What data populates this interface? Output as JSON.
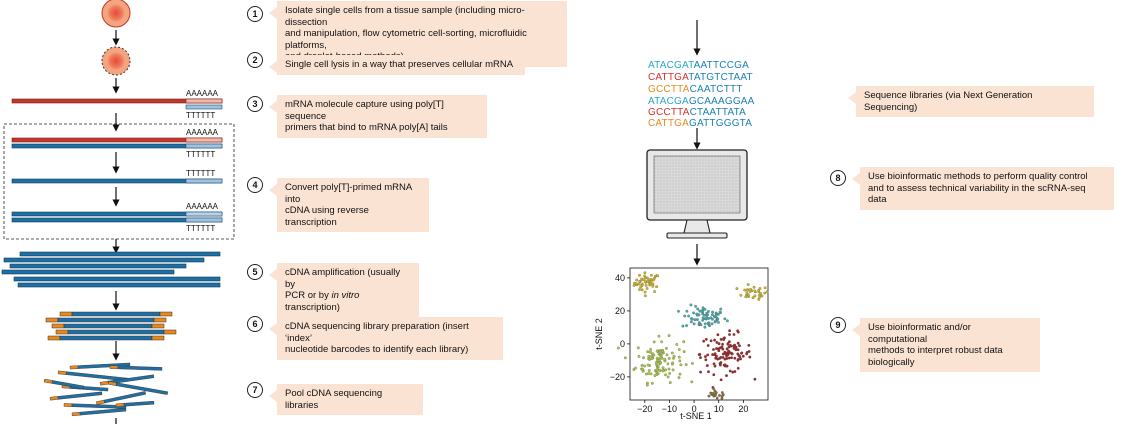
{
  "steps": [
    {
      "num": "1",
      "lines": [
        "Isolate single cells from a tissue sample (including micro-dissection",
        "and manipulation, flow cytometric cell-sorting, microfluidic platforms,",
        "and droplet-based methods)"
      ]
    },
    {
      "num": "2",
      "lines": [
        "Single cell lysis in a way that preserves cellular mRNA"
      ]
    },
    {
      "num": "3",
      "lines": [
        "mRNA molecule capture using poly[T] sequence",
        "primers that bind to mRNA poly[A] tails"
      ]
    },
    {
      "num": "4",
      "lines": [
        "Convert poly[T]-primed mRNA into",
        "cDNA using reverse transcription"
      ]
    },
    {
      "num": "5",
      "lines": [
        "cDNA amplification (usually by",
        "PCR or by in vitro transcription)"
      ]
    },
    {
      "num": "6",
      "lines": [
        "cDNA sequencing library preparation (insert ‘index’",
        "nucleotide barcodes to identify each library)"
      ]
    },
    {
      "num": "7",
      "lines": [
        "Pool cDNA sequencing libraries"
      ]
    },
    {
      "num": "",
      "lines": [
        "Sequence libraries (via Next Generation Sequencing)"
      ]
    },
    {
      "num": "8",
      "lines": [
        "Use bioinformatic methods to perform quality control",
        "and to assess technical variability in the scRNA-seq data"
      ]
    },
    {
      "num": "9",
      "lines": [
        "Use bioinformatic and/or computational",
        "methods to interpret robust data biologically"
      ]
    }
  ],
  "poly_a_label": "AAAAAA",
  "poly_t_label": "TTTTTT",
  "sequences": [
    {
      "prefix": "ATACGAT",
      "rest": "AATTCCGA",
      "color": "#2aa6c9"
    },
    {
      "prefix": "CATTGA",
      "rest": "TATGTCTAAT",
      "color": "#d9302c"
    },
    {
      "prefix": "GCCTTA",
      "rest": "CAATCTTT",
      "color": "#e8891f"
    },
    {
      "prefix": "ATACGA",
      "rest": "GCAAAGGAA",
      "color": "#2aa6c9"
    },
    {
      "prefix": "GCCTTA",
      "rest": "CTAATTATA",
      "color": "#d9302c"
    },
    {
      "prefix": "CATTGA",
      "rest": "GATTGGGTA",
      "color": "#e8891f"
    }
  ],
  "sequence_rest_color": "#1b7fb2",
  "colors": {
    "mrna": "#c0392b",
    "cdna": "#1f6fa3",
    "index": "#e8891f",
    "label_bg": "#fbe3d4"
  },
  "tsne": {
    "xlabel": "t-SNE 1",
    "ylabel": "t-SNE 2",
    "xticks": [
      -20,
      -10,
      0,
      10,
      20
    ],
    "yticks": [
      40,
      20,
      0,
      -20
    ],
    "xlim": [
      -26,
      30
    ],
    "ylim": [
      -34,
      46
    ],
    "clusters": [
      {
        "color": "#c9b32e",
        "cx": -19,
        "cy": 37,
        "sx": 2.6,
        "sy": 3.0,
        "n": 45
      },
      {
        "color": "#c9b32e",
        "cx": 24,
        "cy": 31,
        "sx": 3.2,
        "sy": 2.0,
        "n": 30
      },
      {
        "color": "#4aa8a8",
        "cx": 4,
        "cy": 16,
        "sx": 4.5,
        "sy": 3.5,
        "n": 70
      },
      {
        "color": "#a8c24a",
        "cx": -14,
        "cy": -10,
        "sx": 4.8,
        "sy": 6.5,
        "n": 110
      },
      {
        "color": "#9c2a2a",
        "cx": 13,
        "cy": -6,
        "sx": 5.2,
        "sy": 6.0,
        "n": 110
      },
      {
        "color": "#8a7040",
        "cx": 9,
        "cy": -31,
        "sx": 2.5,
        "sy": 1.2,
        "n": 18
      }
    ]
  }
}
